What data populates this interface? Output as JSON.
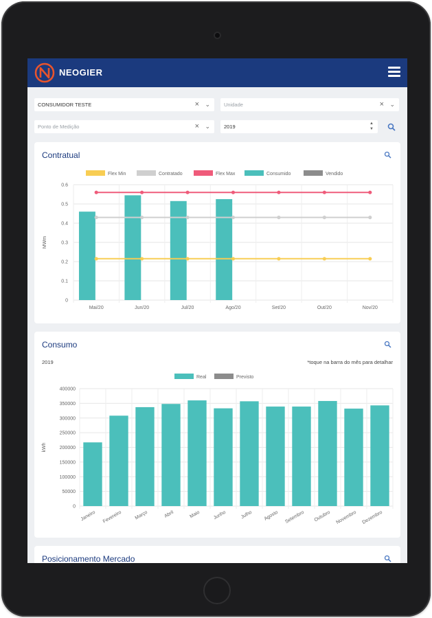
{
  "app": {
    "brand": "NEOGIER"
  },
  "filters": {
    "consumidor": "CONSUMIDOR TESTE",
    "unidade_placeholder": "Unidade",
    "ponto_placeholder": "Ponto de Medição",
    "ano": "2019"
  },
  "colors": {
    "header": "#1b3a7e",
    "teal": "#4bbfbb",
    "flex_min": "#f8cd53",
    "contratado": "#cfcfcf",
    "flex_max": "#ef5b7a",
    "vendido": "#8c8c8c"
  },
  "contratual": {
    "title": "Contratual",
    "chart_data": {
      "type": "bar",
      "categories": [
        "Mai/20",
        "Jun/20",
        "Jul/20",
        "Ago/20",
        "Set/20",
        "Out/20",
        "Nov/20"
      ],
      "ylabel": "MWm",
      "ylim": [
        0,
        0.6
      ],
      "yticks": [
        "0",
        "0.1",
        "0.2",
        "0.3",
        "0.4",
        "0.5",
        "0.6"
      ],
      "legend": [
        "Flex Min",
        "Contratado",
        "Flex Max",
        "Consumido",
        "Vendido"
      ],
      "series": [
        {
          "name": "Consumido",
          "type": "bar",
          "values": [
            0.46,
            0.545,
            0.515,
            0.525,
            null,
            null,
            null
          ]
        },
        {
          "name": "Flex Min",
          "type": "line",
          "values": [
            0.215,
            0.215,
            0.215,
            0.215,
            0.215,
            0.215,
            0.215
          ]
        },
        {
          "name": "Contratado",
          "type": "line",
          "values": [
            0.43,
            0.43,
            0.43,
            0.43,
            0.43,
            0.43,
            0.43
          ]
        },
        {
          "name": "Flex Max",
          "type": "line",
          "values": [
            0.56,
            0.56,
            0.56,
            0.56,
            0.56,
            0.56,
            0.56
          ]
        }
      ]
    }
  },
  "consumo": {
    "title": "Consumo",
    "year": "2019",
    "hint": "*toque na barra do mês para detalhar",
    "chart_data": {
      "type": "bar",
      "categories": [
        "Janeiro",
        "Fevereiro",
        "Março",
        "Abril",
        "Maio",
        "Junho",
        "Julho",
        "Agosto",
        "Setembro",
        "Outubro",
        "Novembro",
        "Dezembro"
      ],
      "ylabel": "kWh",
      "ylim": [
        0,
        400000
      ],
      "yticks": [
        "0",
        "50000",
        "100000",
        "150000",
        "200000",
        "250000",
        "300000",
        "350000",
        "400000"
      ],
      "legend": [
        "Real",
        "Previsto"
      ],
      "series": [
        {
          "name": "Real",
          "values": [
            217000,
            308000,
            337000,
            348000,
            360000,
            333000,
            357000,
            339000,
            339000,
            358000,
            332000,
            343000
          ]
        }
      ]
    }
  },
  "posicionamento": {
    "title": "Posicionamento Mercado"
  }
}
